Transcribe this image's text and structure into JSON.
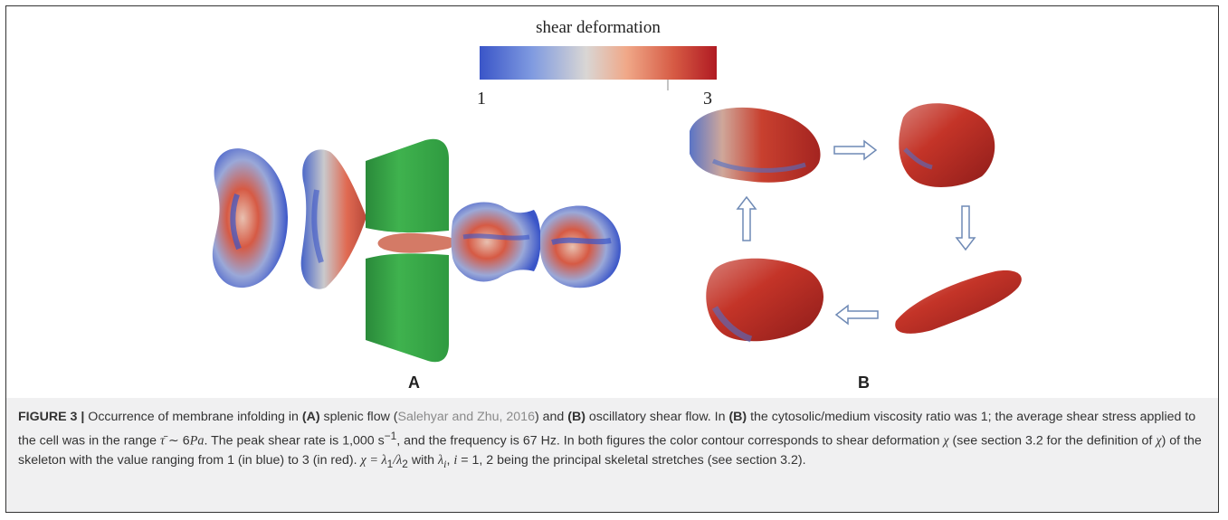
{
  "colorbar": {
    "title": "shear deformation",
    "min_label": "1",
    "max_label": "3",
    "colors": [
      "#3a55c8",
      "#d9d6d4",
      "#b01a22"
    ]
  },
  "panels": {
    "a_label": "A",
    "b_label": "B"
  },
  "caption": {
    "fig_num": "FIGURE 3 |",
    "t1": " Occurrence of membrane infolding in ",
    "ref_a1": "(A)",
    "t2": " splenic flow (",
    "citation": "Salehyar and Zhu, 2016",
    "t3": ") and ",
    "ref_b1": "(B)",
    "t4": " oscillatory shear flow. In ",
    "ref_b2": "(B)",
    "t5": " the cytosolic/medium viscosity ratio was 1; the average shear stress applied to the cell was in the range ",
    "tau": "τ̄",
    "t6": " ∼ 6",
    "pa": "Pa",
    "t7": ". The peak shear rate is 1,000 s",
    "exp": "−1",
    "t8": ", and the frequency is 67 Hz. In both figures the color contour corresponds to shear deformation ",
    "chi1": "χ",
    "t9": " (see section 3.2 for the definition of ",
    "chi2": "χ",
    "t10": ") of the skeleton with the value ranging from 1 (in blue) to 3 (in red). ",
    "formula": "χ = λ",
    "sub1": "1",
    "t11": "/λ",
    "sub2": "2",
    "t12": " with ",
    "lambda_i": "λ",
    "sub_i": "i",
    "t13": ", ",
    "i_var": "i",
    "t14": " = 1, 2 being the principal skeletal stretches (see section 3.2)."
  }
}
